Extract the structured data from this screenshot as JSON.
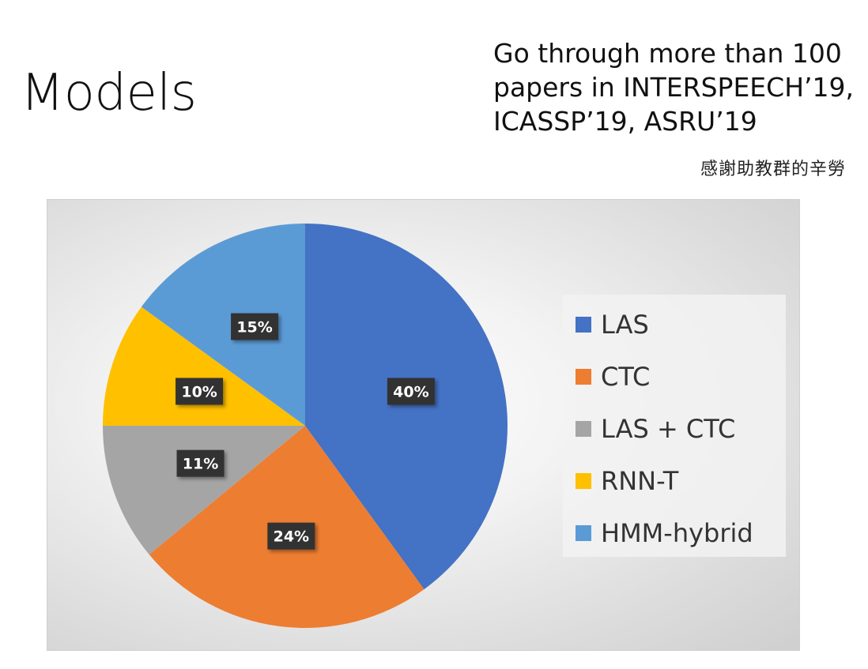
{
  "slide": {
    "title": "Models",
    "note_lines": [
      "Go through more than 100",
      "papers in INTERSPEECH’19,",
      "ICASSP’19, ASRU’19"
    ],
    "thanks": "感謝助教群的辛勞"
  },
  "chart_data": {
    "type": "pie",
    "title": "",
    "categories": [
      "LAS",
      "CTC",
      "LAS + CTC",
      "RNN-T",
      "HMM-hybrid"
    ],
    "values": [
      40,
      24,
      11,
      10,
      15
    ],
    "labels": [
      "40%",
      "24%",
      "11%",
      "10%",
      "15%"
    ],
    "colors": [
      "#4472C4",
      "#ED7D31",
      "#A5A5A5",
      "#FFC000",
      "#5B9BD5"
    ],
    "legend": "right",
    "start": "top",
    "direction": "clockwise",
    "label_style": {
      "fill": "#333333",
      "text": "#ffffff"
    }
  }
}
